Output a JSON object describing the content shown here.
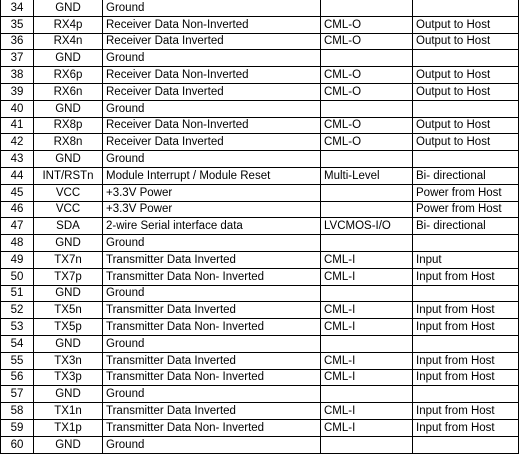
{
  "rows": [
    {
      "pin": "34",
      "signal": "GND",
      "desc": "Ground",
      "type": "",
      "dir": ""
    },
    {
      "pin": "35",
      "signal": "RX4p",
      "desc": "Receiver Data Non-Inverted",
      "type": "CML-O",
      "dir": "Output to Host"
    },
    {
      "pin": "36",
      "signal": "RX4n",
      "desc": "Receiver Data Inverted",
      "type": "CML-O",
      "dir": "Output to Host"
    },
    {
      "pin": "37",
      "signal": "GND",
      "desc": "Ground",
      "type": "",
      "dir": ""
    },
    {
      "pin": "38",
      "signal": "RX6p",
      "desc": "Receiver Data Non-Inverted",
      "type": "CML-O",
      "dir": "Output to Host"
    },
    {
      "pin": "39",
      "signal": "RX6n",
      "desc": "Receiver Data Inverted",
      "type": "CML-O",
      "dir": "Output to Host"
    },
    {
      "pin": "40",
      "signal": "GND",
      "desc": "Ground",
      "type": "",
      "dir": ""
    },
    {
      "pin": "41",
      "signal": "RX8p",
      "desc": "Receiver Data Non-Inverted",
      "type": "CML-O",
      "dir": "Output to Host"
    },
    {
      "pin": "42",
      "signal": "RX8n",
      "desc": "Receiver Data Inverted",
      "type": "CML-O",
      "dir": "Output to Host"
    },
    {
      "pin": "43",
      "signal": "GND",
      "desc": "Ground",
      "type": "",
      "dir": ""
    },
    {
      "pin": "44",
      "signal": "INT/RSTn",
      "desc": "Module Interrupt / Module Reset",
      "type": "Multi-Level",
      "dir": "Bi- directional"
    },
    {
      "pin": "45",
      "signal": "VCC",
      "desc": "+3.3V Power",
      "type": "",
      "dir": "Power from Host"
    },
    {
      "pin": "46",
      "signal": "VCC",
      "desc": "+3.3V Power",
      "type": "",
      "dir": "Power from Host"
    },
    {
      "pin": "47",
      "signal": "SDA",
      "desc": "2-wire Serial interface data",
      "type": "LVCMOS-I/O",
      "dir": "Bi- directional"
    },
    {
      "pin": "48",
      "signal": "GND",
      "desc": "Ground",
      "type": "",
      "dir": ""
    },
    {
      "pin": "49",
      "signal": "TX7n",
      "desc": "Transmitter Data Inverted",
      "type": "CML-I",
      "dir": "Input"
    },
    {
      "pin": "50",
      "signal": "TX7p",
      "desc": "Transmitter Data Non- Inverted",
      "type": "CML-I",
      "dir": "Input from Host"
    },
    {
      "pin": "51",
      "signal": "GND",
      "desc": "Ground",
      "type": "",
      "dir": ""
    },
    {
      "pin": "52",
      "signal": "TX5n",
      "desc": "Transmitter Data Inverted",
      "type": "CML-I",
      "dir": "Input from Host"
    },
    {
      "pin": "53",
      "signal": "TX5p",
      "desc": "Transmitter Data Non- Inverted",
      "type": "CML-I",
      "dir": "Input from Host"
    },
    {
      "pin": "54",
      "signal": "GND",
      "desc": "Ground",
      "type": "",
      "dir": ""
    },
    {
      "pin": "55",
      "signal": "TX3n",
      "desc": "Transmitter Data Inverted",
      "type": "CML-I",
      "dir": "Input from Host"
    },
    {
      "pin": "56",
      "signal": "TX3p",
      "desc": "Transmitter Data Non- Inverted",
      "type": "CML-I",
      "dir": "Input from Host"
    },
    {
      "pin": "57",
      "signal": "GND",
      "desc": "Ground",
      "type": "",
      "dir": ""
    },
    {
      "pin": "58",
      "signal": "TX1n",
      "desc": "Transmitter Data Inverted",
      "type": "CML-I",
      "dir": "Input from Host"
    },
    {
      "pin": "59",
      "signal": "TX1p",
      "desc": "Transmitter Data Non- Inverted",
      "type": "CML-I",
      "dir": "Input from Host"
    },
    {
      "pin": "60",
      "signal": "GND",
      "desc": "Ground",
      "type": "",
      "dir": ""
    }
  ]
}
